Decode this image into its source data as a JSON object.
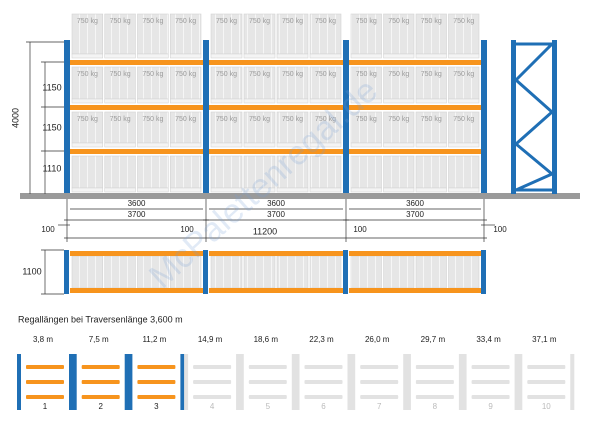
{
  "pallet_load": "750 kg",
  "watermark": "McPalettenregal.de",
  "front_view": {
    "height": "4000",
    "levels": [
      "1150",
      "1150",
      "1110"
    ],
    "beam_lengths": [
      "3600",
      "3600",
      "3600"
    ],
    "bay_lengths": [
      "3700",
      "3700",
      "3700"
    ],
    "clearances": [
      "100",
      "100",
      "100",
      "100"
    ],
    "total_length": "11200"
  },
  "plan_view": {
    "depth": "1100"
  },
  "caption": "Regallängen bei Traversenlänge 3,600 m",
  "configurations": [
    {
      "length": "3,8 m",
      "number": "1",
      "active": true
    },
    {
      "length": "7,5 m",
      "number": "2",
      "active": true
    },
    {
      "length": "11,2 m",
      "number": "3",
      "active": true
    },
    {
      "length": "14,9 m",
      "number": "4",
      "active": false
    },
    {
      "length": "18,6 m",
      "number": "5",
      "active": false
    },
    {
      "length": "22,3 m",
      "number": "6",
      "active": false
    },
    {
      "length": "26,0 m",
      "number": "7",
      "active": false
    },
    {
      "length": "29,7 m",
      "number": "8",
      "active": false
    },
    {
      "length": "33,4 m",
      "number": "9",
      "active": false
    },
    {
      "length": "37,1 m",
      "number": "10",
      "active": false
    }
  ]
}
